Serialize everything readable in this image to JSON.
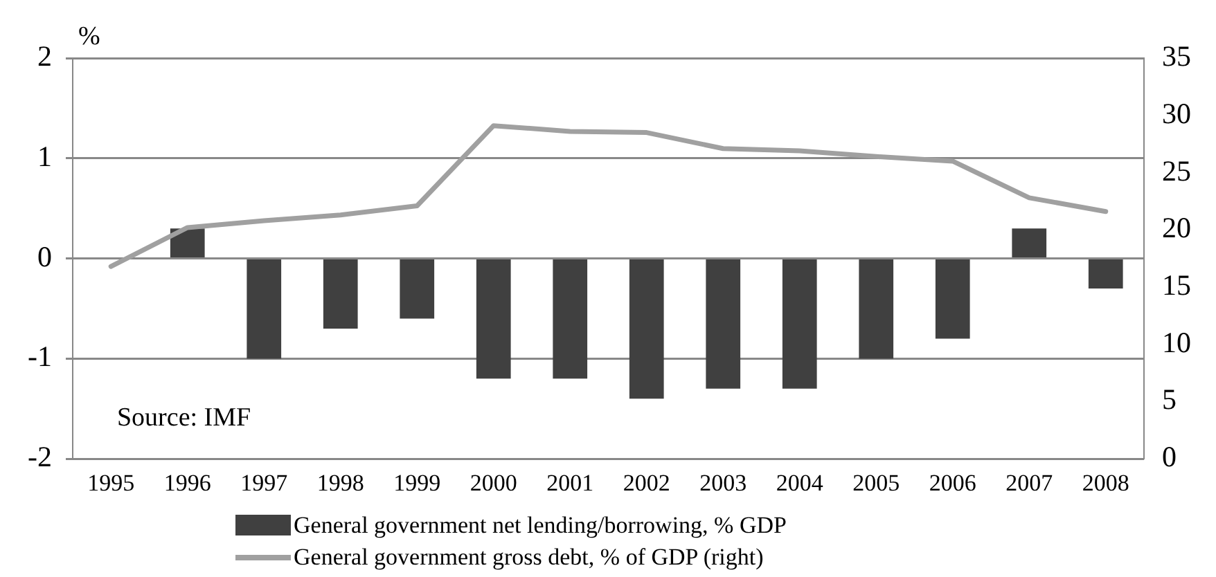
{
  "chart_data": {
    "type": "bar",
    "ylabel": "%",
    "categories": [
      "1995",
      "1996",
      "1997",
      "1998",
      "1999",
      "2000",
      "2001",
      "2002",
      "2003",
      "2004",
      "2005",
      "2006",
      "2007",
      "2008"
    ],
    "series": [
      {
        "name": "General government net lending/borrowing, % GDP",
        "color": "#404040",
        "values": [
          null,
          0.3,
          -1.0,
          -0.7,
          -0.6,
          -1.2,
          -1.2,
          -1.4,
          -1.3,
          -1.3,
          -1.0,
          -0.8,
          0.3,
          -0.3
        ]
      },
      {
        "name": "General government gross debt, % of GDP (right)",
        "type": "line",
        "axis": "y2",
        "color": "#a0a0a0",
        "values": [
          16.8,
          20.2,
          20.8,
          21.3,
          22.1,
          29.1,
          28.6,
          28.5,
          27.1,
          26.9,
          26.4,
          26.0,
          22.8,
          21.6
        ]
      }
    ],
    "ylim": [
      -2,
      2
    ],
    "yticks": [
      -2,
      -1,
      0,
      1,
      2
    ],
    "y2lim": [
      0,
      35
    ],
    "y2ticks": [
      0,
      5,
      10,
      15,
      20,
      25,
      30,
      35
    ],
    "grid": "y",
    "legend": "bottom",
    "marker": "none",
    "line_style": "solid",
    "annotations": [
      "Source: IMF"
    ]
  }
}
